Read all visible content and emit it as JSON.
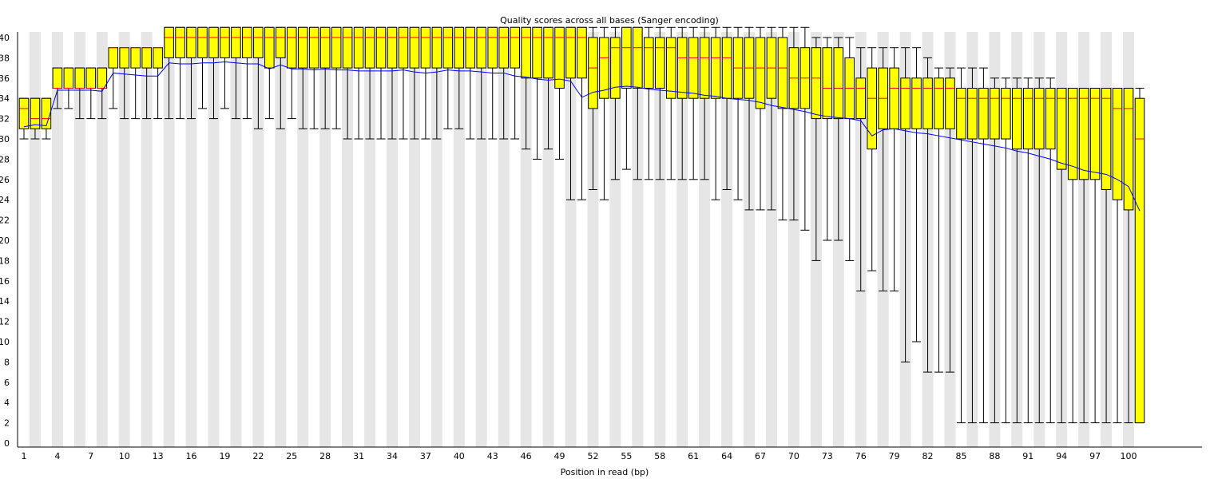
{
  "chart_data": {
    "type": "box",
    "title": "Quality scores across all bases (Sanger encoding)",
    "xlabel": "Position in read (bp)",
    "ylabel": "",
    "ylim": [
      0,
      40
    ],
    "yticks": [
      0,
      2,
      4,
      6,
      8,
      10,
      12,
      14,
      16,
      18,
      20,
      22,
      24,
      26,
      28,
      30,
      32,
      34,
      36,
      38,
      40
    ],
    "xtick_labels": [
      "1",
      "4",
      "7",
      "10",
      "13",
      "16",
      "19",
      "22",
      "25",
      "28",
      "31",
      "34",
      "37",
      "40",
      "43",
      "46",
      "49",
      "52",
      "55",
      "58",
      "61",
      "64",
      "67",
      "70",
      "73",
      "76",
      "79",
      "82",
      "85",
      "88",
      "91",
      "94",
      "97",
      "100"
    ],
    "grid": "alternating vertical bands",
    "colors": {
      "box_fill": "#ffff00",
      "box_border": "#000000",
      "median": "#ff0000",
      "mean_line": "#0000ff",
      "band": "#e6e6e6"
    },
    "positions": [
      1,
      2,
      3,
      4,
      5,
      6,
      7,
      8,
      9,
      10,
      11,
      12,
      13,
      14,
      15,
      16,
      17,
      18,
      19,
      20,
      21,
      22,
      23,
      24,
      25,
      26,
      27,
      28,
      29,
      30,
      31,
      32,
      33,
      34,
      35,
      36,
      37,
      38,
      39,
      40,
      41,
      42,
      43,
      44,
      45,
      46,
      47,
      48,
      49,
      50,
      51,
      52,
      53,
      54,
      55,
      56,
      57,
      58,
      59,
      60,
      61,
      62,
      63,
      64,
      65,
      66,
      67,
      68,
      69,
      70,
      71,
      72,
      73,
      74,
      75,
      76,
      77,
      78,
      79,
      80,
      81,
      82,
      83,
      84,
      85,
      86,
      87,
      88,
      89,
      90,
      91,
      92,
      93,
      94,
      95,
      96,
      97,
      98,
      99,
      100,
      101
    ],
    "q1": [
      31,
      31,
      31,
      35,
      35,
      35,
      35,
      35,
      37,
      37,
      37,
      37,
      37,
      38,
      38,
      38,
      38,
      38,
      38,
      38,
      38,
      38,
      37,
      38,
      37,
      37,
      37,
      37,
      37,
      37,
      37,
      37,
      37,
      37,
      37,
      37,
      37,
      37,
      37,
      37,
      37,
      37,
      37,
      37,
      37,
      36,
      36,
      36,
      35,
      36,
      36,
      33,
      34,
      34,
      35,
      35,
      35,
      35,
      34,
      34,
      34,
      34,
      34,
      34,
      34,
      34,
      33,
      34,
      33,
      33,
      33,
      32,
      32,
      32,
      32,
      32,
      29,
      31,
      31,
      31,
      31,
      31,
      31,
      31,
      30,
      30,
      30,
      30,
      30,
      29,
      29,
      29,
      29,
      27,
      26,
      26,
      26,
      25,
      24,
      23,
      2
    ],
    "median": [
      33,
      32,
      32,
      35,
      35,
      35,
      35,
      35,
      39,
      39,
      39,
      39,
      39,
      40,
      40,
      40,
      40,
      40,
      40,
      40,
      40,
      40,
      40,
      40,
      40,
      40,
      40,
      40,
      40,
      40,
      40,
      40,
      40,
      40,
      40,
      40,
      40,
      40,
      40,
      40,
      40,
      40,
      40,
      40,
      40,
      40,
      40,
      40,
      40,
      40,
      40,
      37,
      38,
      39,
      39,
      39,
      39,
      39,
      39,
      38,
      38,
      38,
      38,
      38,
      37,
      37,
      37,
      37,
      37,
      36,
      36,
      36,
      35,
      35,
      35,
      35,
      34,
      34,
      35,
      35,
      35,
      35,
      35,
      35,
      34,
      34,
      34,
      34,
      34,
      34,
      34,
      34,
      34,
      34,
      34,
      34,
      34,
      34,
      33,
      33,
      30
    ],
    "q3": [
      34,
      34,
      34,
      37,
      37,
      37,
      37,
      37,
      39,
      39,
      39,
      39,
      39,
      41,
      41,
      41,
      41,
      41,
      41,
      41,
      41,
      41,
      41,
      41,
      41,
      41,
      41,
      41,
      41,
      41,
      41,
      41,
      41,
      41,
      41,
      41,
      41,
      41,
      41,
      41,
      41,
      41,
      41,
      41,
      41,
      41,
      41,
      41,
      41,
      41,
      41,
      40,
      40,
      40,
      41,
      41,
      40,
      40,
      40,
      40,
      40,
      40,
      40,
      40,
      40,
      40,
      40,
      40,
      40,
      39,
      39,
      39,
      39,
      39,
      38,
      36,
      37,
      37,
      37,
      36,
      36,
      36,
      36,
      36,
      35,
      35,
      35,
      35,
      35,
      35,
      35,
      35,
      35,
      35,
      35,
      35,
      35,
      35,
      35,
      35,
      34
    ],
    "lower_whisker": [
      30,
      30,
      30,
      33,
      33,
      32,
      32,
      32,
      33,
      32,
      32,
      32,
      32,
      32,
      32,
      32,
      33,
      32,
      33,
      32,
      32,
      31,
      32,
      31,
      32,
      31,
      31,
      31,
      31,
      30,
      30,
      30,
      30,
      30,
      30,
      30,
      30,
      30,
      31,
      31,
      30,
      30,
      30,
      30,
      30,
      29,
      28,
      29,
      28,
      24,
      24,
      25,
      24,
      26,
      27,
      26,
      26,
      26,
      26,
      26,
      26,
      26,
      24,
      25,
      24,
      23,
      23,
      23,
      22,
      22,
      21,
      18,
      20,
      20,
      18,
      15,
      17,
      15,
      15,
      8,
      10,
      7,
      7,
      7,
      2,
      2,
      2,
      2,
      2,
      2,
      2,
      2,
      2,
      2,
      2,
      2,
      2,
      2,
      2,
      2,
      2
    ],
    "upper_whisker": [
      34,
      34,
      34,
      37,
      37,
      37,
      37,
      37,
      39,
      39,
      39,
      39,
      39,
      41,
      41,
      41,
      41,
      41,
      41,
      41,
      41,
      41,
      41,
      41,
      41,
      41,
      41,
      41,
      41,
      41,
      41,
      41,
      41,
      41,
      41,
      41,
      41,
      41,
      41,
      41,
      41,
      41,
      41,
      41,
      41,
      41,
      41,
      41,
      41,
      41,
      41,
      41,
      41,
      41,
      41,
      41,
      41,
      41,
      41,
      41,
      41,
      41,
      41,
      41,
      41,
      41,
      41,
      41,
      41,
      41,
      41,
      40,
      40,
      40,
      40,
      39,
      39,
      39,
      39,
      39,
      39,
      38,
      37,
      37,
      37,
      37,
      37,
      36,
      36,
      36,
      36,
      36,
      36,
      35,
      35,
      35,
      35,
      35,
      35,
      35,
      35
    ],
    "mean": [
      31.2,
      31.4,
      31.3,
      34.8,
      34.8,
      34.8,
      34.8,
      34.7,
      36.5,
      36.4,
      36.3,
      36.2,
      36.2,
      37.5,
      37.4,
      37.4,
      37.5,
      37.5,
      37.6,
      37.5,
      37.4,
      37.4,
      36.9,
      37.3,
      36.9,
      36.9,
      36.8,
      36.9,
      36.8,
      36.8,
      36.7,
      36.7,
      36.7,
      36.7,
      36.8,
      36.6,
      36.5,
      36.6,
      36.8,
      36.7,
      36.7,
      36.6,
      36.5,
      36.5,
      36.2,
      36.1,
      35.9,
      35.8,
      35.9,
      35.7,
      34.1,
      34.6,
      34.8,
      35.1,
      35.2,
      35.1,
      34.9,
      34.8,
      34.7,
      34.6,
      34.5,
      34.3,
      34.2,
      34.0,
      33.9,
      33.8,
      33.6,
      33.3,
      33.1,
      32.9,
      32.7,
      32.4,
      32.2,
      32.1,
      32.0,
      31.8,
      30.3,
      30.9,
      31.0,
      30.8,
      30.6,
      30.5,
      30.3,
      30.1,
      29.9,
      29.7,
      29.5,
      29.3,
      29.1,
      28.8,
      28.6,
      28.3,
      28.0,
      27.6,
      27.3,
      26.9,
      26.7,
      26.5,
      26.0,
      25.3,
      22.9
    ]
  }
}
